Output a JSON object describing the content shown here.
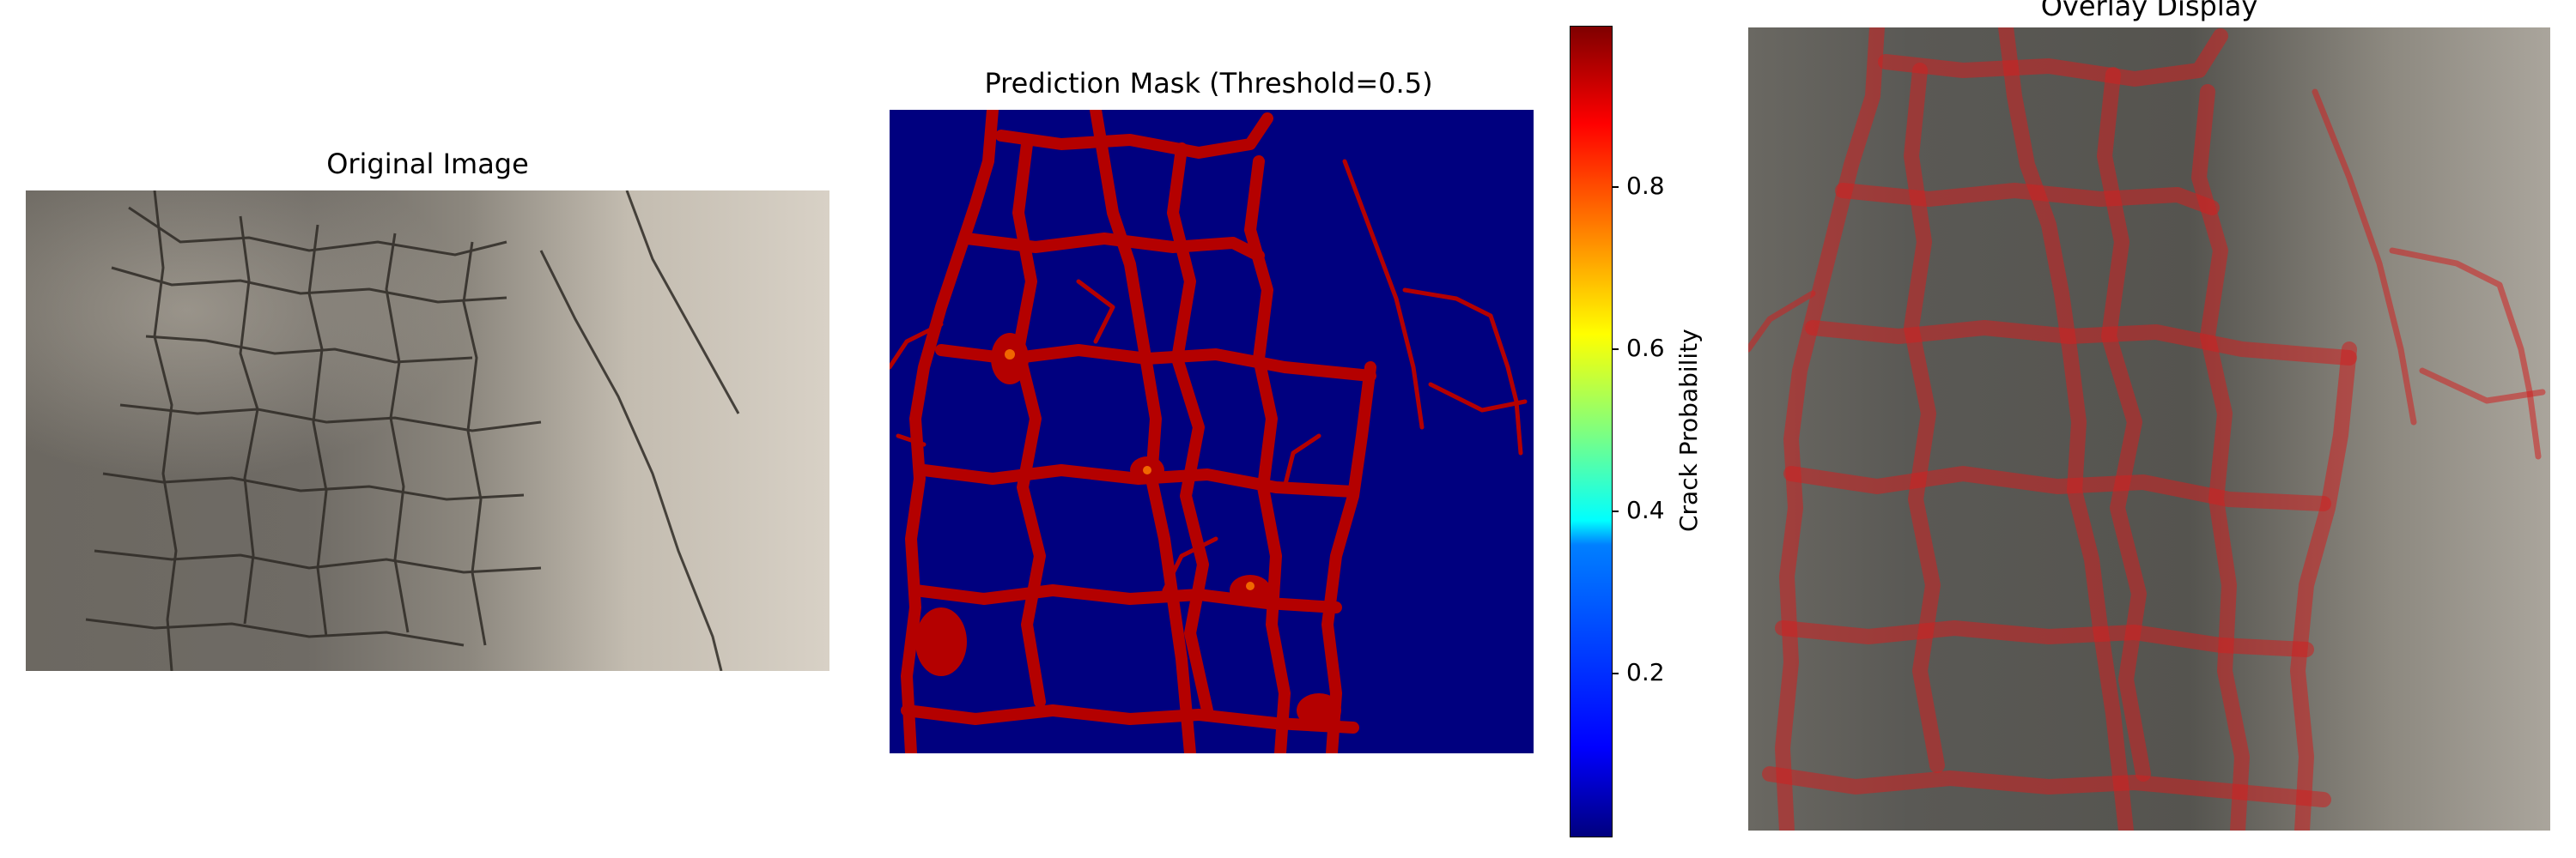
{
  "panels": {
    "original": {
      "title": "Original Image"
    },
    "mask": {
      "title": "Prediction Mask (Threshold=0.5)"
    },
    "overlay": {
      "title": "Overlay Display"
    }
  },
  "colorbar": {
    "label": "Crack Probability",
    "ticks": [
      "0.8",
      "0.6",
      "0.4",
      "0.2"
    ],
    "colormap": "jet",
    "range": [
      0.0,
      1.0
    ]
  },
  "colors": {
    "mask_background": "#00007f",
    "crack_red": "#b40000",
    "overlay_tint": "#d02020"
  }
}
